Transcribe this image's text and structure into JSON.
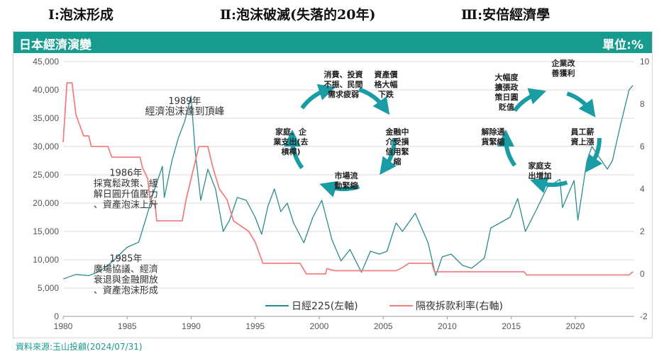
{
  "phases": [
    {
      "label": "Ⅰ:泡沫形成"
    },
    {
      "label": "Ⅱ:泡沫破滅(失落的20年)"
    },
    {
      "label": "Ⅲ:安倍經濟學"
    }
  ],
  "header": {
    "title": "日本經濟演變",
    "unit": "單位:%"
  },
  "source": "資料來源:玉山投顧(2024/07/31)",
  "colors": {
    "header": "#179b8e",
    "nikkei": "#2a8c8c",
    "rate": "#f08080",
    "arrow": "#1a9ca4"
  },
  "chart_data": {
    "type": "line",
    "x_ticks": [
      "1980",
      "1985",
      "1990",
      "1995",
      "2000",
      "2005",
      "2010",
      "2015",
      "2020"
    ],
    "xlim": [
      1980,
      2024.6
    ],
    "y_left": {
      "ticks": [
        "45,000",
        "40,000",
        "35,000",
        "30,000",
        "25,000",
        "20,000",
        "15,000",
        "10,000",
        "5,000",
        "0"
      ],
      "ylim": [
        0,
        45000
      ]
    },
    "y_right": {
      "ticks": [
        "10",
        "8",
        "6",
        "4",
        "2",
        "0",
        "-2"
      ],
      "ylim": [
        -2,
        10
      ]
    },
    "series": [
      {
        "name": "日經225(左軸)",
        "axis": "left",
        "points": [
          [
            1980.0,
            6600
          ],
          [
            1981.0,
            7400
          ],
          [
            1982.0,
            7200
          ],
          [
            1982.8,
            7900
          ],
          [
            1983.5,
            9000
          ],
          [
            1984.0,
            10000
          ],
          [
            1985.0,
            12200
          ],
          [
            1985.9,
            13100
          ],
          [
            1986.5,
            17500
          ],
          [
            1987.0,
            21500
          ],
          [
            1987.75,
            26500
          ],
          [
            1987.9,
            21000
          ],
          [
            1988.5,
            27500
          ],
          [
            1989.0,
            31500
          ],
          [
            1989.5,
            34500
          ],
          [
            1989.99,
            38900
          ],
          [
            1990.3,
            29500
          ],
          [
            1990.75,
            20500
          ],
          [
            1991.3,
            26000
          ],
          [
            1991.9,
            22500
          ],
          [
            1992.5,
            15000
          ],
          [
            1993.0,
            17000
          ],
          [
            1993.6,
            21000
          ],
          [
            1994.3,
            20500
          ],
          [
            1995.0,
            17500
          ],
          [
            1995.5,
            14500
          ],
          [
            1996.0,
            19500
          ],
          [
            1996.5,
            22500
          ],
          [
            1997.0,
            18500
          ],
          [
            1997.5,
            20000
          ],
          [
            1998.0,
            16500
          ],
          [
            1998.8,
            13000
          ],
          [
            1999.5,
            17500
          ],
          [
            2000.2,
            20500
          ],
          [
            2001.0,
            13500
          ],
          [
            2001.7,
            9800
          ],
          [
            2002.4,
            11800
          ],
          [
            2003.3,
            7800
          ],
          [
            2004.0,
            11500
          ],
          [
            2004.7,
            11000
          ],
          [
            2005.3,
            11500
          ],
          [
            2006.0,
            16500
          ],
          [
            2006.5,
            15000
          ],
          [
            2007.5,
            18200
          ],
          [
            2008.5,
            13000
          ],
          [
            2009.1,
            7200
          ],
          [
            2009.6,
            10500
          ],
          [
            2010.3,
            11000
          ],
          [
            2011.2,
            9000
          ],
          [
            2011.9,
            8500
          ],
          [
            2012.9,
            10300
          ],
          [
            2013.4,
            15600
          ],
          [
            2014.9,
            17500
          ],
          [
            2015.5,
            20800
          ],
          [
            2016.1,
            15000
          ],
          [
            2017.0,
            19000
          ],
          [
            2017.8,
            22800
          ],
          [
            2018.8,
            24200
          ],
          [
            2019.0,
            19200
          ],
          [
            2019.9,
            24000
          ],
          [
            2020.2,
            17000
          ],
          [
            2020.9,
            27400
          ],
          [
            2021.3,
            30000
          ],
          [
            2022.5,
            26000
          ],
          [
            2022.9,
            27500
          ],
          [
            2023.5,
            33500
          ],
          [
            2024.2,
            40000
          ],
          [
            2024.5,
            40800
          ]
        ]
      },
      {
        "name": "隔夜拆款利率(右軸)",
        "axis": "right",
        "points": [
          [
            1980.0,
            6.2
          ],
          [
            1980.3,
            9.0
          ],
          [
            1980.7,
            9.0
          ],
          [
            1981.0,
            7.5
          ],
          [
            1981.6,
            6.5
          ],
          [
            1982.0,
            6.5
          ],
          [
            1982.2,
            6.0
          ],
          [
            1983.5,
            6.0
          ],
          [
            1983.8,
            5.5
          ],
          [
            1986.0,
            5.5
          ],
          [
            1986.2,
            5.0
          ],
          [
            1986.6,
            4.5
          ],
          [
            1986.8,
            3.5
          ],
          [
            1987.2,
            3.2
          ],
          [
            1987.3,
            2.5
          ],
          [
            1989.3,
            2.5
          ],
          [
            1989.6,
            3.5
          ],
          [
            1990.0,
            4.5
          ],
          [
            1990.6,
            6.0
          ],
          [
            1991.3,
            6.0
          ],
          [
            1991.7,
            5.0
          ],
          [
            1992.2,
            4.0
          ],
          [
            1992.8,
            3.5
          ],
          [
            1993.3,
            2.5
          ],
          [
            1994.5,
            2.0
          ],
          [
            1995.0,
            1.5
          ],
          [
            1995.6,
            0.5
          ],
          [
            1998.5,
            0.5
          ],
          [
            1999.0,
            0.0
          ],
          [
            2000.5,
            0.0
          ],
          [
            2000.6,
            0.25
          ],
          [
            2001.2,
            0.15
          ],
          [
            2006.0,
            0.15
          ],
          [
            2006.5,
            0.3
          ],
          [
            2007.0,
            0.5
          ],
          [
            2008.8,
            0.5
          ],
          [
            2009.0,
            0.1
          ],
          [
            2016.0,
            0.1
          ],
          [
            2016.2,
            -0.05
          ],
          [
            2024.2,
            -0.05
          ],
          [
            2024.5,
            0.1
          ]
        ]
      }
    ],
    "annotations": [
      {
        "lines": [
          "1989年",
          "經濟泡沫達到頂峰"
        ],
        "x": 1989.5,
        "y": 37500
      },
      {
        "lines": [
          "1986年",
          "採寬鬆政策、緩",
          "解日圓升值壓力",
          "、資產泡沫上升"
        ],
        "x": 1984.9,
        "y": 24800
      },
      {
        "lines": [
          "1985年",
          "廣場協議、經濟",
          "衰退與金融開放",
          "、資產泡沫形成"
        ],
        "x": 1984.9,
        "y": 9700
      }
    ],
    "cycles": [
      {
        "items": [
          "消費、投資\n不振、民間\n需求疲弱",
          "資產價\n格大幅\n下跌",
          "金融中\n介受損\n信用緊\n縮",
          "市場流\n動緊縮",
          "家庭、企\n業支出(去\n槓桿)"
        ]
      },
      {
        "items": [
          "大幅度\n擴張政\n策日圓\n貶值",
          "企業改\n善獲利",
          "員工薪\n資上漲",
          "家庭支\n出增加",
          "解除通\n貨緊縮"
        ]
      }
    ]
  }
}
